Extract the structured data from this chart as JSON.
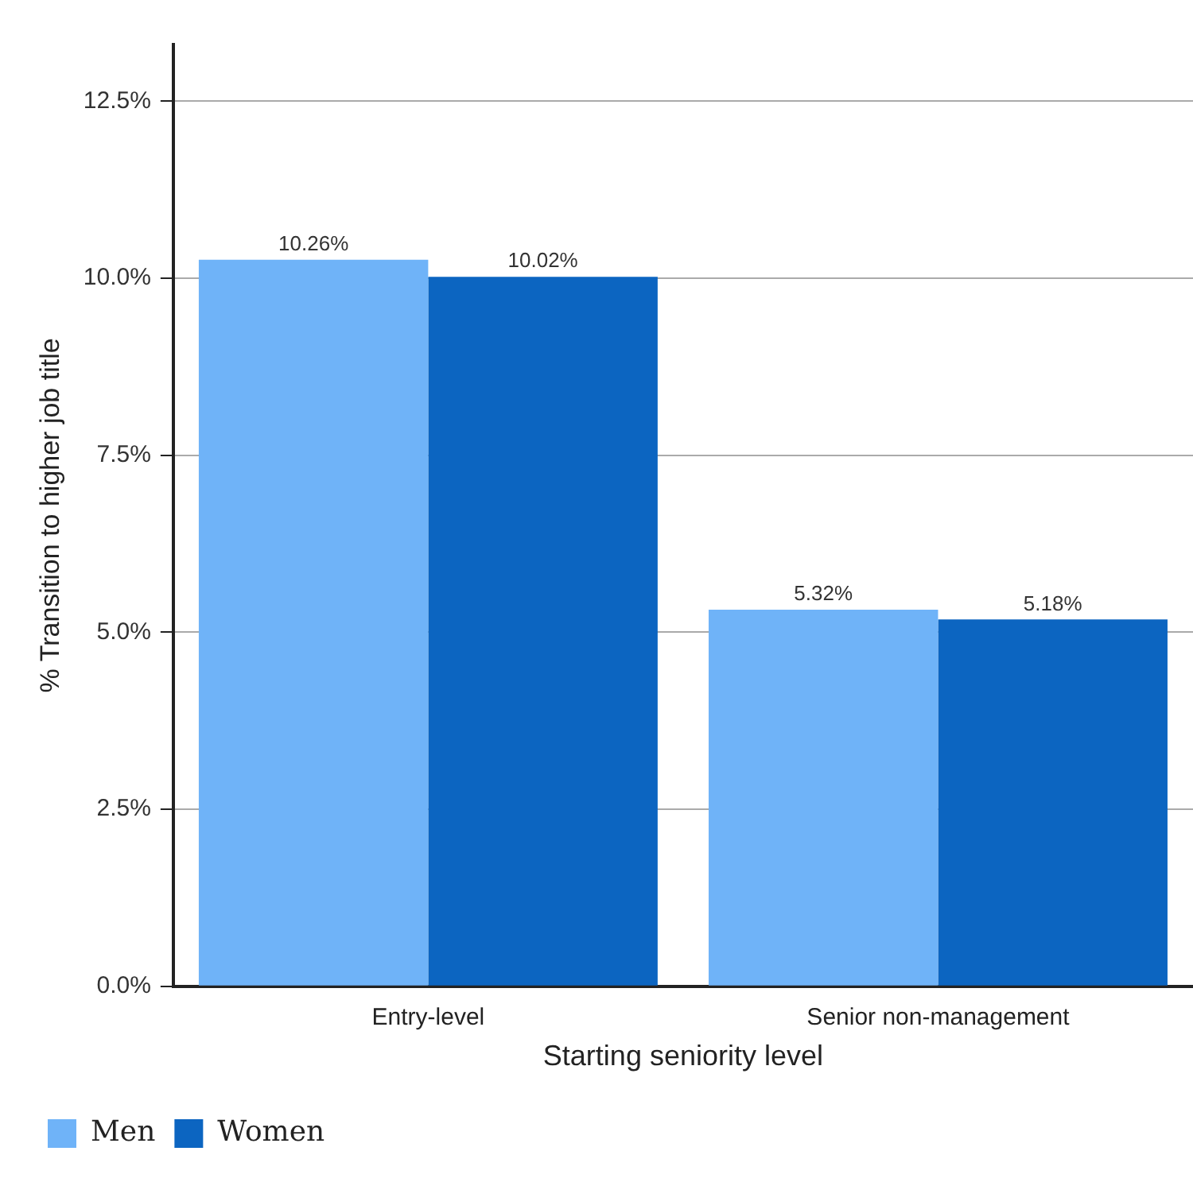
{
  "chart_data": {
    "type": "bar",
    "xlabel": "Starting seniority level",
    "ylabel": "% Transition to higher job title",
    "categories": [
      "Entry-level",
      "Senior non-management"
    ],
    "series": [
      {
        "name": "Men",
        "color": "#6fb3f8",
        "values": [
          10.26,
          5.32
        ],
        "value_labels": [
          "10.26%",
          "5.32%"
        ]
      },
      {
        "name": "Women",
        "color": "#0c65c1",
        "values": [
          10.02,
          5.18
        ],
        "value_labels": [
          "10.02%",
          "5.18%"
        ]
      }
    ],
    "ylim": [
      0,
      13.3
    ],
    "yticks": [
      {
        "value": 0,
        "label": "0.0%"
      },
      {
        "value": 2.5,
        "label": "2.5%"
      },
      {
        "value": 5,
        "label": "5.0%"
      },
      {
        "value": 7.5,
        "label": "7.5%"
      },
      {
        "value": 10,
        "label": "10.0%"
      },
      {
        "value": 12.5,
        "label": "12.5%"
      }
    ],
    "grid": "y",
    "legend": "bottom left"
  }
}
